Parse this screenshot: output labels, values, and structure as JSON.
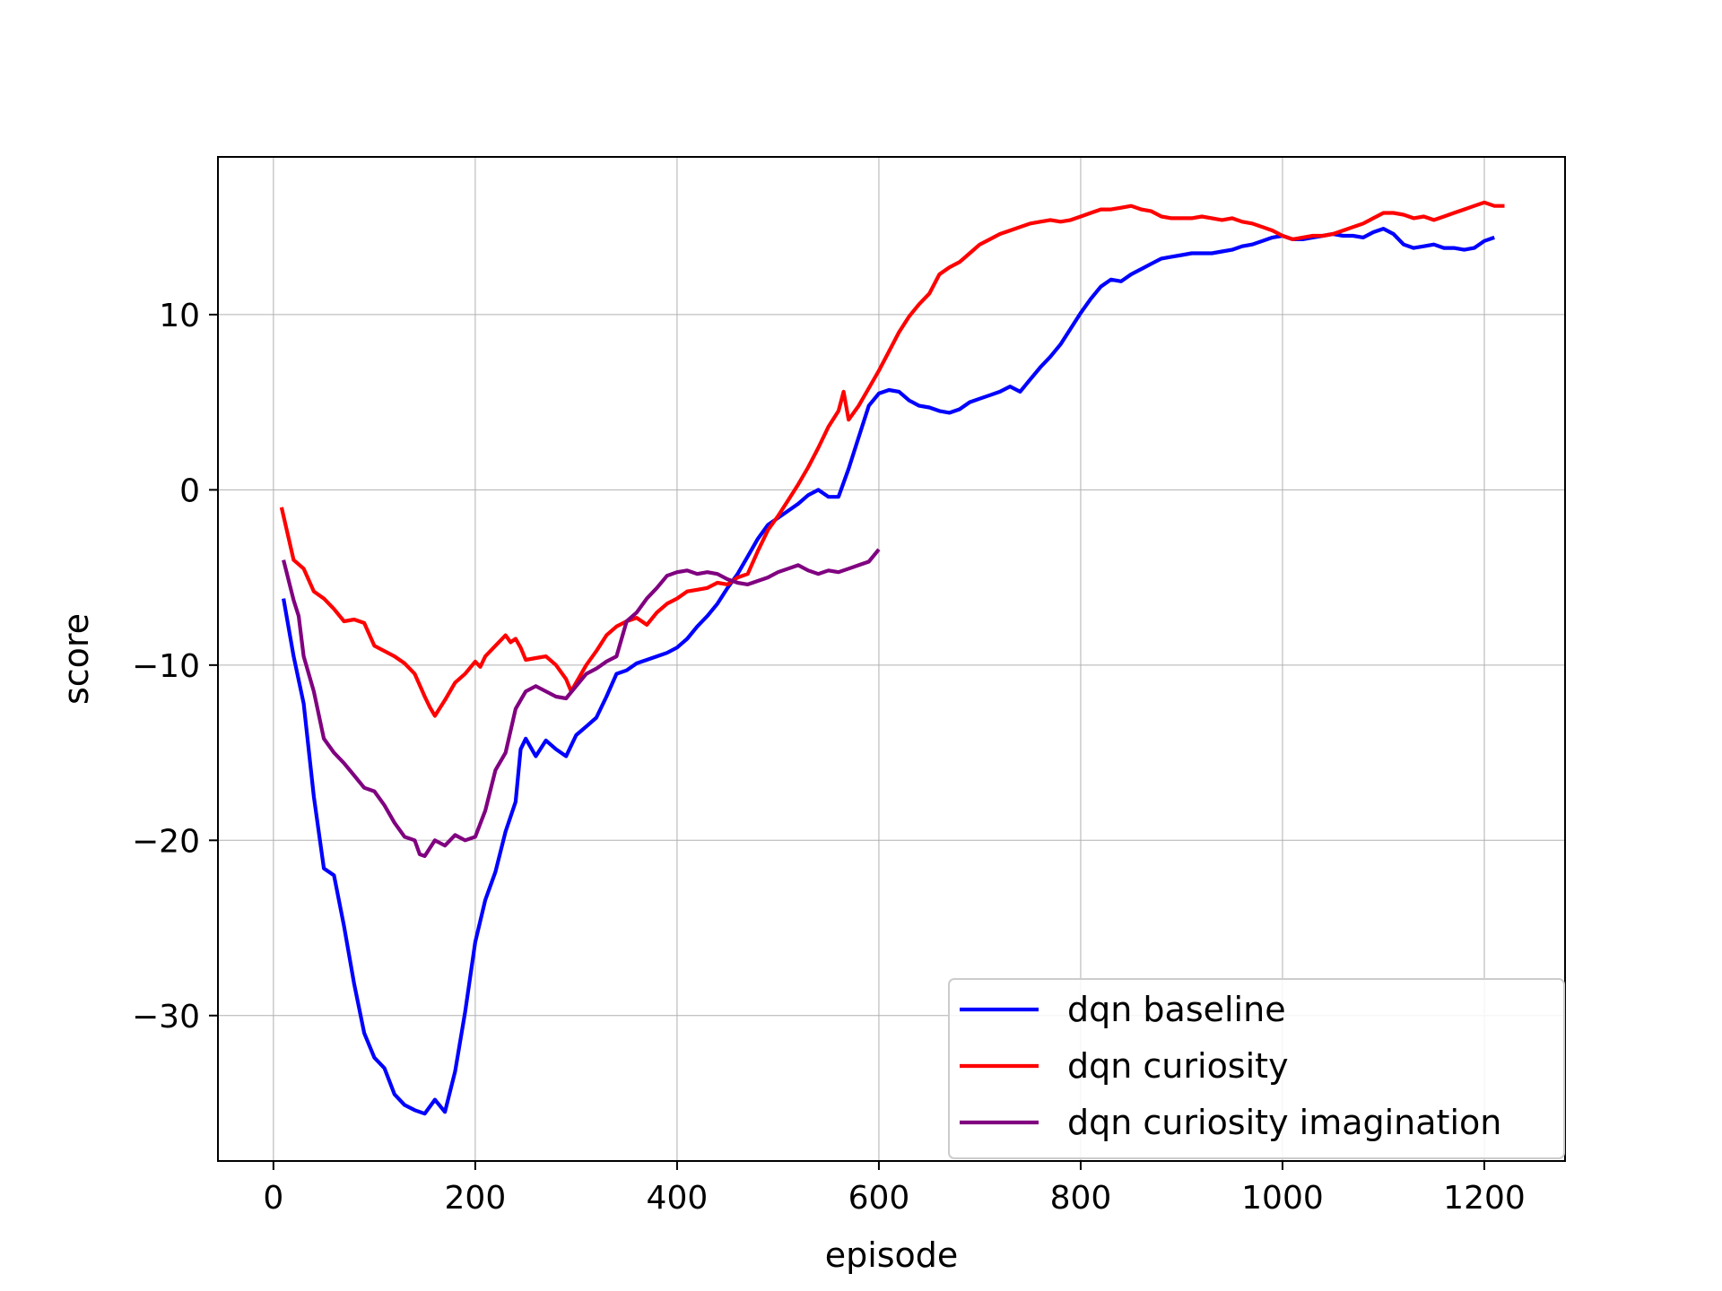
{
  "chart_data": {
    "type": "line",
    "title": "",
    "xlabel": "episode",
    "ylabel": "score",
    "xlim": [
      -55,
      1280
    ],
    "ylim": [
      -38.3,
      19.0
    ],
    "xticks": [
      0,
      200,
      400,
      600,
      800,
      1000,
      1200
    ],
    "yticks": [
      -30,
      -20,
      -10,
      0,
      10
    ],
    "ytick_labels": [
      "−30",
      "−20",
      "−10",
      "0",
      "10"
    ],
    "grid": true,
    "legend_position": "lower-right",
    "series": [
      {
        "name": "dqn baseline",
        "color": "#0000ff",
        "x": [
          10,
          20,
          30,
          40,
          50,
          60,
          70,
          80,
          90,
          100,
          110,
          120,
          130,
          140,
          150,
          160,
          170,
          180,
          190,
          200,
          210,
          220,
          230,
          240,
          245,
          250,
          260,
          270,
          280,
          290,
          300,
          310,
          320,
          330,
          340,
          350,
          360,
          370,
          380,
          390,
          400,
          410,
          420,
          430,
          440,
          450,
          460,
          470,
          480,
          490,
          500,
          510,
          520,
          530,
          540,
          550,
          560,
          570,
          580,
          590,
          600,
          610,
          620,
          630,
          640,
          650,
          660,
          670,
          680,
          690,
          700,
          710,
          720,
          730,
          740,
          750,
          760,
          770,
          780,
          790,
          800,
          810,
          820,
          830,
          840,
          850,
          860,
          870,
          880,
          890,
          900,
          910,
          920,
          930,
          940,
          950,
          960,
          970,
          980,
          990,
          1000,
          1010,
          1020,
          1030,
          1040,
          1050,
          1060,
          1070,
          1080,
          1090,
          1100,
          1110,
          1120,
          1130,
          1140,
          1150,
          1160,
          1170,
          1180,
          1190,
          1200,
          1210
        ],
        "y": [
          -6.2,
          -9.5,
          -12.2,
          -17.5,
          -21.6,
          -22.0,
          -24.9,
          -28.2,
          -31.0,
          -32.4,
          -33.0,
          -34.5,
          -35.1,
          -35.4,
          -35.6,
          -34.8,
          -35.5,
          -33.2,
          -29.8,
          -25.8,
          -23.4,
          -21.8,
          -19.5,
          -17.8,
          -14.8,
          -14.2,
          -15.2,
          -14.3,
          -14.8,
          -15.2,
          -14.0,
          -13.5,
          -13.0,
          -11.8,
          -10.5,
          -10.3,
          -9.9,
          -9.7,
          -9.5,
          -9.3,
          -9.0,
          -8.5,
          -7.8,
          -7.2,
          -6.5,
          -5.6,
          -4.8,
          -3.8,
          -2.8,
          -2.0,
          -1.6,
          -1.2,
          -0.8,
          -0.3,
          0.0,
          -0.4,
          -0.4,
          1.2,
          3.0,
          4.8,
          5.5,
          5.7,
          5.6,
          5.1,
          4.8,
          4.7,
          4.5,
          4.4,
          4.6,
          5.0,
          5.2,
          5.4,
          5.6,
          5.9,
          5.6,
          6.3,
          7.0,
          7.6,
          8.3,
          9.2,
          10.1,
          10.9,
          11.6,
          12.0,
          11.9,
          12.3,
          12.6,
          12.9,
          13.2,
          13.3,
          13.4,
          13.5,
          13.5,
          13.5,
          13.6,
          13.7,
          13.9,
          14.0,
          14.2,
          14.4,
          14.5,
          14.3,
          14.3,
          14.4,
          14.5,
          14.6,
          14.5,
          14.5,
          14.4,
          14.7,
          14.9,
          14.6,
          14.0,
          13.8,
          13.9,
          14.0,
          13.8,
          13.8,
          13.7,
          13.8,
          14.2,
          14.4
        ]
      },
      {
        "name": "dqn curiosity",
        "color": "#ff0000",
        "x": [
          8,
          20,
          30,
          40,
          50,
          60,
          70,
          80,
          90,
          100,
          110,
          120,
          130,
          140,
          150,
          155,
          160,
          170,
          180,
          190,
          200,
          205,
          210,
          220,
          230,
          235,
          240,
          245,
          250,
          260,
          270,
          280,
          290,
          295,
          300,
          310,
          320,
          330,
          340,
          350,
          360,
          370,
          380,
          390,
          400,
          410,
          420,
          430,
          440,
          450,
          460,
          470,
          480,
          490,
          500,
          510,
          520,
          530,
          540,
          550,
          560,
          565,
          570,
          580,
          590,
          600,
          610,
          620,
          630,
          640,
          650,
          660,
          670,
          680,
          690,
          700,
          710,
          720,
          730,
          740,
          750,
          760,
          770,
          780,
          790,
          800,
          810,
          820,
          830,
          840,
          850,
          860,
          870,
          880,
          890,
          900,
          910,
          920,
          930,
          940,
          950,
          960,
          970,
          980,
          990,
          1000,
          1010,
          1020,
          1030,
          1040,
          1050,
          1060,
          1070,
          1080,
          1090,
          1100,
          1110,
          1120,
          1130,
          1140,
          1150,
          1160,
          1170,
          1180,
          1190,
          1200,
          1210,
          1220
        ],
        "y": [
          -1.0,
          -4.0,
          -4.5,
          -5.8,
          -6.2,
          -6.8,
          -7.5,
          -7.4,
          -7.6,
          -8.9,
          -9.2,
          -9.5,
          -9.9,
          -10.5,
          -11.8,
          -12.4,
          -12.9,
          -12.0,
          -11.0,
          -10.5,
          -9.8,
          -10.1,
          -9.5,
          -8.9,
          -8.3,
          -8.7,
          -8.5,
          -9.0,
          -9.7,
          -9.6,
          -9.5,
          -10.0,
          -10.8,
          -11.5,
          -11.0,
          -10.0,
          -9.2,
          -8.3,
          -7.8,
          -7.5,
          -7.3,
          -7.7,
          -7.0,
          -6.5,
          -6.2,
          -5.8,
          -5.7,
          -5.6,
          -5.3,
          -5.4,
          -5.0,
          -4.8,
          -3.5,
          -2.3,
          -1.5,
          -0.6,
          0.3,
          1.3,
          2.4,
          3.6,
          4.5,
          5.6,
          4.0,
          4.8,
          5.8,
          6.8,
          7.9,
          9.0,
          9.9,
          10.6,
          11.2,
          12.3,
          12.7,
          13.0,
          13.5,
          14.0,
          14.3,
          14.6,
          14.8,
          15.0,
          15.2,
          15.3,
          15.4,
          15.3,
          15.4,
          15.6,
          15.8,
          16.0,
          16.0,
          16.1,
          16.2,
          16.0,
          15.9,
          15.6,
          15.5,
          15.5,
          15.5,
          15.6,
          15.5,
          15.4,
          15.5,
          15.3,
          15.2,
          15.0,
          14.8,
          14.5,
          14.3,
          14.4,
          14.5,
          14.5,
          14.6,
          14.8,
          15.0,
          15.2,
          15.5,
          15.8,
          15.8,
          15.7,
          15.5,
          15.6,
          15.4,
          15.6,
          15.8,
          16.0,
          16.2,
          16.4,
          16.2,
          16.2
        ]
      },
      {
        "name": "dqn curiosity imagination",
        "color": "#800080",
        "x": [
          10,
          20,
          25,
          30,
          40,
          50,
          60,
          70,
          80,
          90,
          100,
          110,
          120,
          130,
          140,
          145,
          150,
          160,
          170,
          180,
          190,
          200,
          210,
          220,
          230,
          240,
          245,
          250,
          260,
          270,
          280,
          290,
          300,
          310,
          320,
          330,
          340,
          350,
          360,
          370,
          380,
          390,
          400,
          410,
          420,
          430,
          440,
          450,
          460,
          470,
          480,
          490,
          500,
          510,
          520,
          530,
          540,
          550,
          560,
          570,
          580,
          590,
          600
        ],
        "y": [
          -4.0,
          -6.3,
          -7.2,
          -9.5,
          -11.5,
          -14.2,
          -15.0,
          -15.6,
          -16.3,
          -17.0,
          -17.2,
          -18.0,
          -19.0,
          -19.8,
          -20.0,
          -20.8,
          -20.9,
          -20.0,
          -20.3,
          -19.7,
          -20.0,
          -19.8,
          -18.3,
          -16.0,
          -15.0,
          -12.5,
          -12.0,
          -11.5,
          -11.2,
          -11.5,
          -11.8,
          -11.9,
          -11.2,
          -10.5,
          -10.2,
          -9.8,
          -9.5,
          -7.5,
          -7.0,
          -6.2,
          -5.6,
          -4.9,
          -4.7,
          -4.6,
          -4.8,
          -4.7,
          -4.8,
          -5.1,
          -5.3,
          -5.4,
          -5.2,
          -5.0,
          -4.7,
          -4.5,
          -4.3,
          -4.6,
          -4.8,
          -4.6,
          -4.7,
          -4.5,
          -4.3,
          -4.1,
          -3.4
        ]
      }
    ]
  }
}
